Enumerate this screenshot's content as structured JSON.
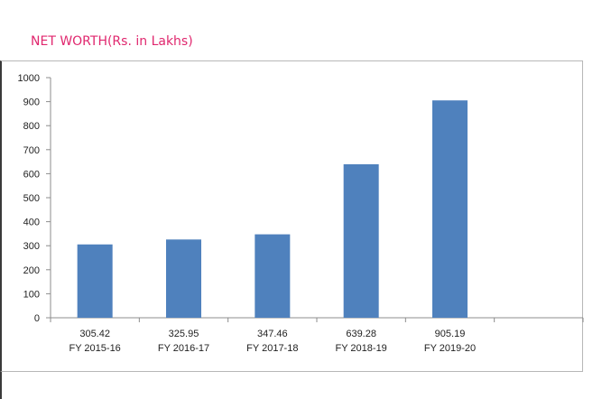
{
  "chart_data": {
    "type": "bar",
    "title": "NET WORTH(Rs. in Lakhs)",
    "categories": [
      "FY 2015-16",
      "FY 2016-17",
      "FY 2017-18",
      "FY 2018-19",
      "FY 2019-20",
      ""
    ],
    "value_labels": [
      "305.42",
      "325.95",
      "347.46",
      "639.28",
      "905.19",
      ""
    ],
    "values": [
      305.42,
      325.95,
      347.46,
      639.28,
      905.19,
      null
    ],
    "ylim": [
      0,
      1000
    ],
    "yticks": [
      "0",
      "100",
      "200",
      "300",
      "400",
      "500",
      "600",
      "700",
      "800",
      "900",
      "1000"
    ],
    "grid": false,
    "bar_color": "#4f81bd"
  }
}
